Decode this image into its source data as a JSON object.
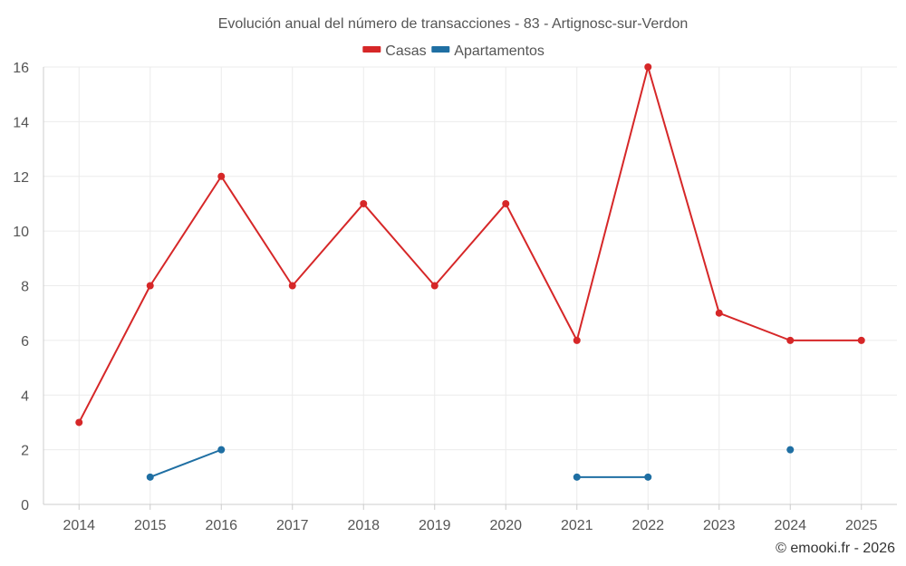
{
  "chart_data": {
    "type": "line",
    "title": "Evolución anual del número de transacciones - 83 - Artignosc-sur-Verdon",
    "categories": [
      "2014",
      "2015",
      "2016",
      "2017",
      "2018",
      "2019",
      "2020",
      "2021",
      "2022",
      "2023",
      "2024",
      "2025"
    ],
    "series": [
      {
        "name": "Casas",
        "color": "#d62728",
        "values": [
          3,
          8,
          12,
          8,
          11,
          8,
          11,
          6,
          16,
          7,
          6,
          6
        ]
      },
      {
        "name": "Apartamentos",
        "color": "#1f6fa3",
        "values": [
          null,
          1,
          2,
          null,
          null,
          null,
          null,
          1,
          1,
          null,
          2,
          null
        ]
      }
    ],
    "ylim": [
      0,
      16
    ],
    "yticks": [
      0,
      2,
      4,
      6,
      8,
      10,
      12,
      14,
      16
    ],
    "xlabel": "",
    "ylabel": "",
    "grid": true,
    "legend_position": "top-center",
    "credit": "© emooki.fr - 2026"
  }
}
